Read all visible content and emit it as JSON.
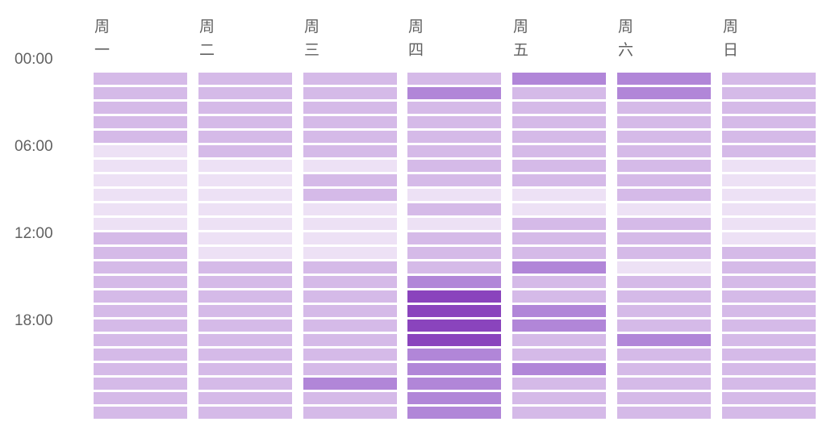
{
  "chart_data": {
    "type": "heatmap",
    "title": "",
    "days": [
      "周一",
      "周二",
      "周三",
      "周四",
      "周五",
      "周六",
      "周日"
    ],
    "time_labels": [
      {
        "hour": 0,
        "label": "00:00"
      },
      {
        "hour": 6,
        "label": "06:00"
      },
      {
        "hour": 12,
        "label": "12:00"
      },
      {
        "hour": 18,
        "label": "18:00"
      }
    ],
    "hours": [
      0,
      1,
      2,
      3,
      4,
      5,
      6,
      7,
      8,
      9,
      10,
      11,
      12,
      13,
      14,
      15,
      16,
      17,
      18,
      19,
      20,
      21,
      22,
      23
    ],
    "levels": 5,
    "colors": [
      "#ede1f5",
      "#d5bae8",
      "#b186d8",
      "#8a44bd",
      "#7a2eb0"
    ],
    "values": [
      [
        1,
        1,
        1,
        1,
        1,
        0,
        0,
        0,
        0,
        0,
        0,
        1,
        1,
        1,
        1,
        1,
        1,
        1,
        1,
        1,
        1,
        1,
        1,
        1
      ],
      [
        1,
        1,
        1,
        1,
        1,
        1,
        0,
        0,
        0,
        0,
        0,
        0,
        0,
        1,
        1,
        1,
        1,
        1,
        1,
        1,
        1,
        1,
        1,
        1
      ],
      [
        1,
        1,
        1,
        1,
        1,
        1,
        0,
        1,
        1,
        0,
        0,
        0,
        0,
        1,
        1,
        1,
        1,
        1,
        1,
        1,
        1,
        2,
        1,
        1
      ],
      [
        1,
        2,
        1,
        1,
        1,
        1,
        1,
        1,
        0,
        1,
        0,
        1,
        1,
        1,
        2,
        3,
        3,
        3,
        3,
        2,
        2,
        2,
        2,
        2
      ],
      [
        2,
        1,
        1,
        1,
        1,
        1,
        1,
        1,
        0,
        0,
        1,
        1,
        1,
        2,
        1,
        1,
        2,
        2,
        1,
        1,
        2,
        1,
        1,
        1
      ],
      [
        2,
        2,
        1,
        1,
        1,
        1,
        1,
        1,
        1,
        0,
        1,
        1,
        1,
        0,
        1,
        1,
        1,
        1,
        2,
        1,
        1,
        1,
        1,
        1
      ],
      [
        1,
        1,
        1,
        1,
        1,
        1,
        0,
        0,
        0,
        0,
        0,
        0,
        1,
        1,
        1,
        1,
        1,
        1,
        1,
        1,
        1,
        1,
        1,
        1
      ]
    ]
  }
}
